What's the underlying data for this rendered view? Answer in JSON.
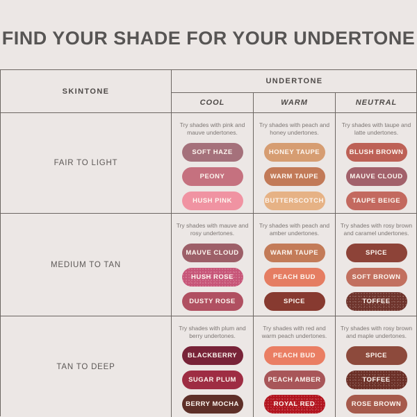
{
  "title": "FIND YOUR SHADE FOR YOUR UNDERTONE",
  "colors": {
    "background": "#ece7e5",
    "table_line": "#6b6561",
    "title_text": "#575554",
    "description_text": "#7c7673",
    "pill_text": "#fdf6f0"
  },
  "chart_data": {
    "type": "table",
    "skintone_header": "SKINTONE",
    "undertone_header": "UNDERTONE",
    "undertone_columns": [
      "COOL",
      "WARM",
      "NEUTRAL"
    ],
    "rows": [
      {
        "skintone": "FAIR TO LIGHT",
        "cells": [
          {
            "description": "Try shades with pink and mauve undertones.",
            "shades": [
              {
                "label": "SOFT HAZE",
                "color": "#a5717b"
              },
              {
                "label": "PEONY",
                "color": "#c5717f"
              },
              {
                "label": "HUSH PINK",
                "color": "#f093a2"
              }
            ]
          },
          {
            "description": "Try shades with peach and honey undertones.",
            "shades": [
              {
                "label": "HONEY TAUPE",
                "color": "#d69d72"
              },
              {
                "label": "WARM TAUPE",
                "color": "#c27a58"
              },
              {
                "label": "BUTTERSCOTCH",
                "color": "#e6b285"
              }
            ]
          },
          {
            "description": "Try shades with taupe and latte undertones.",
            "shades": [
              {
                "label": "BLUSH BROWN",
                "color": "#bd6156"
              },
              {
                "label": "MAUVE CLOUD",
                "color": "#a2616b"
              },
              {
                "label": "TAUPE BEIGE",
                "color": "#c3695f"
              }
            ]
          }
        ]
      },
      {
        "skintone": "MEDIUM TO TAN",
        "cells": [
          {
            "description": "Try shades with mauve and rosy undertones.",
            "shades": [
              {
                "label": "MAUVE CLOUD",
                "color": "#9d5f68"
              },
              {
                "label": "HUSH ROSE",
                "color": "#c75578",
                "finish": "shimmer"
              },
              {
                "label": "DUSTY ROSE",
                "color": "#b05061"
              }
            ]
          },
          {
            "description": "Try shades with peach and amber undertones.",
            "shades": [
              {
                "label": "WARM TAUPE",
                "color": "#c37b58"
              },
              {
                "label": "PEACH BUD",
                "color": "#e57d62"
              },
              {
                "label": "SPICE",
                "color": "#873a30"
              }
            ]
          },
          {
            "description": "Try shades with rosy brown and caramel undertones.",
            "shades": [
              {
                "label": "SPICE",
                "color": "#8d4338"
              },
              {
                "label": "SOFT BROWN",
                "color": "#c2705f"
              },
              {
                "label": "TOFFEE",
                "color": "#6e332b",
                "finish": "shimmer"
              }
            ]
          }
        ]
      },
      {
        "skintone": "TAN TO DEEP",
        "cells": [
          {
            "description": "Try shades with plum and berry undertones.",
            "shades": [
              {
                "label": "BLACKBERRY",
                "color": "#782338"
              },
              {
                "label": "SUGAR PLUM",
                "color": "#9e2d43"
              },
              {
                "label": "BERRY MOCHA",
                "color": "#5e2f28"
              }
            ]
          },
          {
            "description": "Try shades with red and warm peach undertones.",
            "shades": [
              {
                "label": "PEACH BUD",
                "color": "#ea7e63"
              },
              {
                "label": "PEACH AMBER",
                "color": "#a85659"
              },
              {
                "label": "ROYAL RED",
                "color": "#b2141e",
                "finish": "shimmer"
              }
            ]
          },
          {
            "description": "Try shades with rosy brown and maple undertones.",
            "shades": [
              {
                "label": "SPICE",
                "color": "#8d4a3c"
              },
              {
                "label": "TOFFEE",
                "color": "#6b2f26",
                "finish": "shimmer"
              },
              {
                "label": "ROSE BROWN",
                "color": "#a65a4c"
              }
            ]
          }
        ]
      }
    ]
  }
}
